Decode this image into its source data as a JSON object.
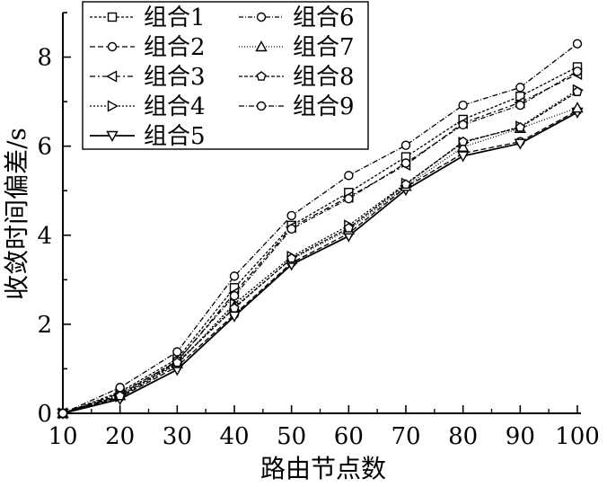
{
  "chart_data": {
    "type": "line",
    "title": "",
    "xlabel": "路由节点数",
    "ylabel": "收敛时间偏差/s",
    "x": [
      10,
      20,
      30,
      40,
      50,
      60,
      70,
      80,
      90,
      100
    ],
    "xlim": [
      10,
      100
    ],
    "ylim": [
      0,
      9
    ],
    "yticks": [
      0,
      2,
      4,
      6,
      8
    ],
    "grid": false,
    "legend_position": "top-left",
    "series": [
      {
        "name": "组合1",
        "marker": "square",
        "dash": "3,2",
        "values": [
          0,
          0.48,
          1.22,
          2.82,
          4.22,
          4.96,
          5.76,
          6.6,
          7.12,
          7.78
        ]
      },
      {
        "name": "组合2",
        "marker": "circle",
        "dash": "6,3",
        "values": [
          0,
          0.36,
          1.05,
          2.22,
          3.38,
          4.04,
          5.08,
          5.84,
          6.1,
          6.8
        ]
      },
      {
        "name": "组合3",
        "marker": "triangle-left",
        "dash": "6,3,2,3",
        "values": [
          0,
          0.45,
          1.16,
          2.7,
          4.18,
          4.86,
          5.58,
          6.52,
          6.98,
          7.62
        ]
      },
      {
        "name": "组合4",
        "marker": "triangle-right",
        "dash": "2,2",
        "values": [
          0,
          0.38,
          1.1,
          2.46,
          3.52,
          4.22,
          5.16,
          6.08,
          6.44,
          7.26
        ]
      },
      {
        "name": "组合5",
        "marker": "triangle-down",
        "dash": "",
        "values": [
          0,
          0.32,
          0.98,
          2.18,
          3.34,
          3.98,
          5.02,
          5.78,
          6.06,
          6.76
        ]
      },
      {
        "name": "组合6",
        "marker": "circle",
        "dash": "5,2,1,2",
        "values": [
          0,
          0.42,
          1.18,
          2.64,
          4.14,
          4.82,
          5.62,
          6.48,
          6.92,
          7.68
        ]
      },
      {
        "name": "组合7",
        "marker": "triangle-up",
        "dash": "1,2",
        "values": [
          0,
          0.4,
          1.12,
          2.4,
          3.46,
          4.12,
          5.1,
          5.98,
          6.4,
          6.86
        ]
      },
      {
        "name": "组合8",
        "marker": "pentagon",
        "dash": "4,2",
        "values": [
          0,
          0.39,
          1.14,
          2.36,
          3.48,
          4.16,
          5.14,
          6.1,
          6.42,
          7.22
        ]
      },
      {
        "name": "组合9",
        "marker": "circle",
        "dash": "6,2,1,2",
        "values": [
          0,
          0.58,
          1.38,
          3.08,
          4.44,
          5.34,
          6.02,
          6.92,
          7.32,
          8.3
        ]
      }
    ]
  }
}
